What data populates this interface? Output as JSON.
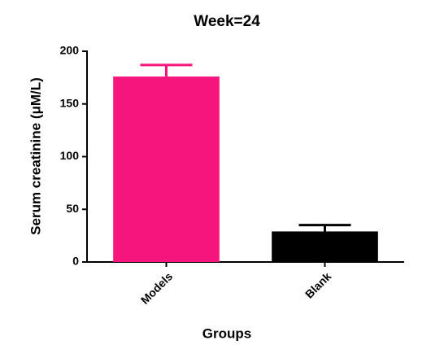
{
  "chart_data": {
    "type": "bar",
    "title": "Week=24",
    "x_label": "Groups",
    "y_label": "Serum creatinine (μM/L)",
    "categories": [
      "Models",
      "Blank"
    ],
    "values": [
      176,
      29
    ],
    "errors": [
      11,
      6
    ],
    "colors": [
      "#f5157d",
      "#000000"
    ],
    "ylim": [
      0,
      200
    ],
    "yticks": [
      0,
      50,
      100,
      150,
      200
    ]
  }
}
